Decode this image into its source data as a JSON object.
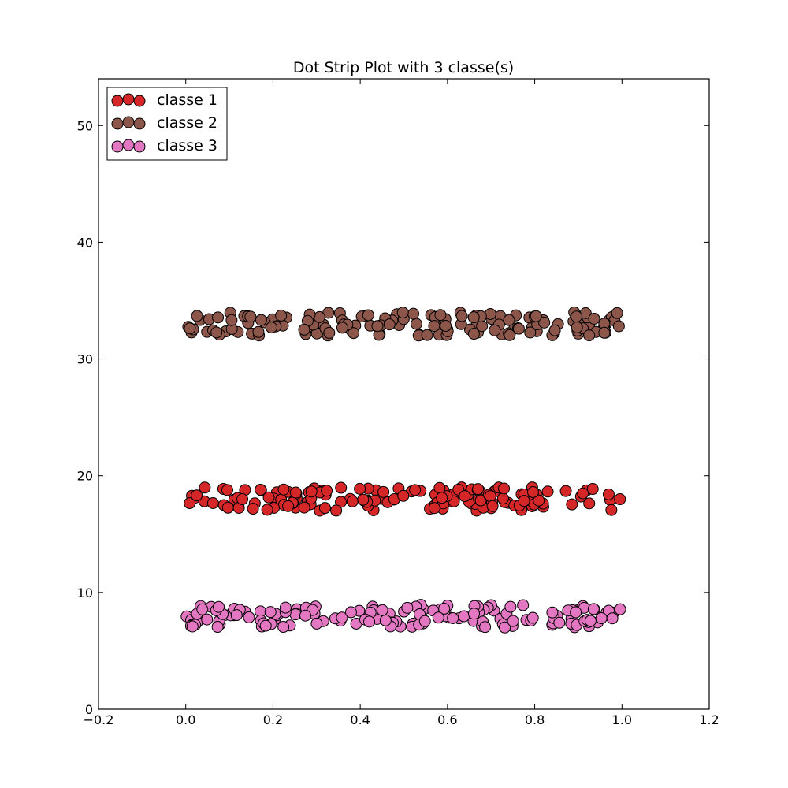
{
  "chart_data": {
    "type": "scatter",
    "title": "Dot Strip Plot with 3 classe(s)",
    "xlabel": "",
    "ylabel": "",
    "xlim": [
      -0.2,
      1.2
    ],
    "ylim": [
      0,
      54
    ],
    "xticks": [
      -0.2,
      0.0,
      0.2,
      0.4,
      0.6,
      0.8,
      1.0,
      1.2
    ],
    "xtick_labels": [
      "−0.2",
      "0.0",
      "0.2",
      "0.4",
      "0.6",
      "0.8",
      "1.0",
      "1.2"
    ],
    "yticks": [
      0,
      10,
      20,
      30,
      40,
      50
    ],
    "ytick_labels": [
      "0",
      "10",
      "20",
      "30",
      "40",
      "50"
    ],
    "grid": false,
    "legend_position": "top-left",
    "point_count_per_class": 150,
    "series": [
      {
        "name": "classe 1",
        "color": "#d62728",
        "y_center": 18.0,
        "y_spread": 1.0
      },
      {
        "name": "classe 2",
        "color": "#8c564b",
        "y_center": 33.0,
        "y_spread": 1.0
      },
      {
        "name": "classe 3",
        "color": "#e377c2",
        "y_center": 8.0,
        "y_spread": 1.0
      }
    ]
  }
}
